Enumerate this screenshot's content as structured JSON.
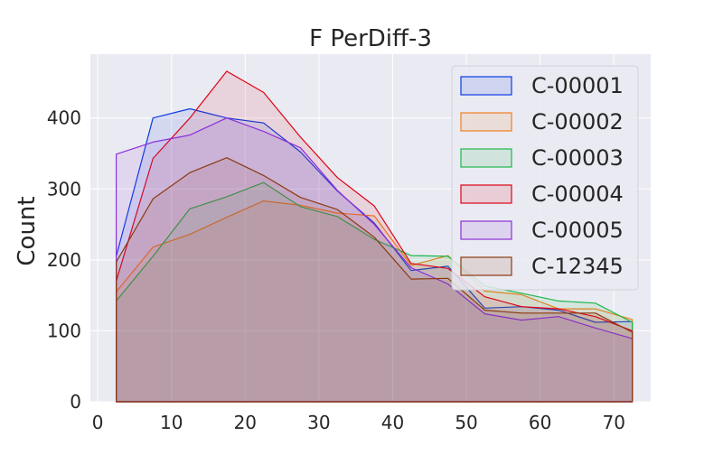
{
  "chart_data": {
    "type": "area",
    "title": "F PerDiff-3",
    "xlabel": "",
    "ylabel": "Count",
    "xlim": [
      -1,
      75
    ],
    "ylim": [
      0,
      490
    ],
    "xticks": [
      "0",
      "10",
      "20",
      "30",
      "40",
      "50",
      "60",
      "70"
    ],
    "yticks": [
      "0",
      "100",
      "200",
      "300",
      "400"
    ],
    "grid": true,
    "legend_position": "top-right",
    "x": [
      2.5,
      7.5,
      12.5,
      17.5,
      22.5,
      27.5,
      32.5,
      37.5,
      42.5,
      47.5,
      52.5,
      57.5,
      62.5,
      67.5,
      72.5
    ],
    "series": [
      {
        "name": "C-00001",
        "color": "#0a3ce6",
        "values": [
          205,
          400,
          413,
          400,
          393,
          352,
          297,
          252,
          185,
          191,
          132,
          134,
          129,
          112,
          113
        ]
      },
      {
        "name": "C-00002",
        "color": "#f08020",
        "values": [
          155,
          218,
          236,
          260,
          283,
          277,
          266,
          262,
          192,
          206,
          156,
          151,
          131,
          131,
          116
        ]
      },
      {
        "name": "C-00003",
        "color": "#1db848",
        "values": [
          142,
          205,
          272,
          289,
          309,
          275,
          261,
          229,
          206,
          205,
          163,
          153,
          142,
          139,
          112
        ]
      },
      {
        "name": "C-00004",
        "color": "#dc0416",
        "values": [
          170,
          343,
          400,
          466,
          436,
          373,
          316,
          276,
          195,
          188,
          148,
          134,
          131,
          120,
          100
        ]
      },
      {
        "name": "C-00005",
        "color": "#8b30d8",
        "values": [
          349,
          366,
          376,
          400,
          381,
          358,
          298,
          250,
          189,
          166,
          124,
          115,
          120,
          104,
          89
        ]
      },
      {
        "name": "C-12345",
        "color": "#8b3a10",
        "values": [
          197,
          286,
          323,
          344,
          319,
          288,
          271,
          232,
          173,
          174,
          129,
          125,
          125,
          125,
          98
        ]
      }
    ]
  }
}
